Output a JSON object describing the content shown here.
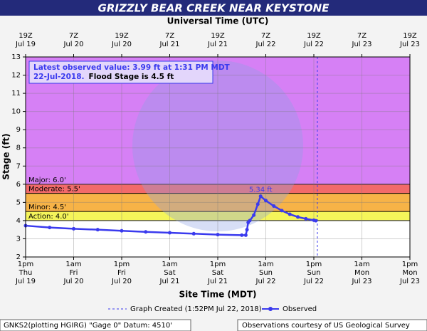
{
  "chart_data": {
    "type": "line",
    "title": "GRIZZLY BEAR CREEK NEAR KEYSTONE",
    "x2_axis_label": "Universal Time (UTC)",
    "x_axis_label": "Site Time (MDT)",
    "y_axis_label": "Stage (ft)",
    "xlim": [
      0,
      96
    ],
    "ylim": [
      2,
      13
    ],
    "yticks": [
      2,
      3,
      4,
      5,
      6,
      7,
      8,
      9,
      10,
      11,
      12,
      13
    ],
    "xticks": [
      {
        "value": 0,
        "label": [
          "1pm",
          "Thu",
          "Jul 19"
        ]
      },
      {
        "value": 12,
        "label": [
          "1am",
          "Fri",
          "Jul 20"
        ]
      },
      {
        "value": 24,
        "label": [
          "1pm",
          "Fri",
          "Jul 20"
        ]
      },
      {
        "value": 36,
        "label": [
          "1am",
          "Sat",
          "Jul 21"
        ]
      },
      {
        "value": 48,
        "label": [
          "1pm",
          "Sat",
          "Jul 21"
        ]
      },
      {
        "value": 60,
        "label": [
          "1am",
          "Sun",
          "Jul 22"
        ]
      },
      {
        "value": 72,
        "label": [
          "1pm",
          "Sun",
          "Jul 22"
        ]
      },
      {
        "value": 84,
        "label": [
          "1am",
          "Mon",
          "Jul 23"
        ]
      },
      {
        "value": 96,
        "label": [
          "1pm",
          "Mon",
          "Jul 23"
        ]
      }
    ],
    "x2ticks": [
      {
        "value": 0,
        "label": [
          "19Z",
          "Jul 19"
        ]
      },
      {
        "value": 12,
        "label": [
          "7Z",
          "Jul 20"
        ]
      },
      {
        "value": 24,
        "label": [
          "19Z",
          "Jul 20"
        ]
      },
      {
        "value": 36,
        "label": [
          "7Z",
          "Jul 21"
        ]
      },
      {
        "value": 48,
        "label": [
          "19Z",
          "Jul 21"
        ]
      },
      {
        "value": 60,
        "label": [
          "7Z",
          "Jul 22"
        ]
      },
      {
        "value": 72,
        "label": [
          "19Z",
          "Jul 22"
        ]
      },
      {
        "value": 84,
        "label": [
          "7Z",
          "Jul 23"
        ]
      },
      {
        "value": 96,
        "label": [
          "19Z",
          "Jul 23"
        ]
      }
    ],
    "grid": true,
    "stages": [
      {
        "label": "Action: 4.0'",
        "value": 4.0,
        "color": "#f5f55a"
      },
      {
        "label": "Minor: 4.5'",
        "value": 4.5,
        "color": "#f7b347"
      },
      {
        "label": "Moderate: 5.5'",
        "value": 5.5,
        "color": "#f26a6a"
      },
      {
        "label": "Major: 6.0'",
        "value": 6.0,
        "color": "#d680f5"
      }
    ],
    "series": [
      {
        "name": "Observed",
        "color": "#3a3aee",
        "x": [
          0,
          6,
          12,
          18,
          24,
          30,
          36,
          42,
          48,
          54,
          55,
          55.3,
          55.6,
          56,
          57,
          58,
          58.7,
          60,
          62,
          64,
          66,
          68,
          70,
          72,
          72.5
        ],
        "values": [
          3.72,
          3.62,
          3.55,
          3.5,
          3.44,
          3.38,
          3.33,
          3.28,
          3.23,
          3.2,
          3.2,
          3.5,
          3.9,
          4.0,
          4.3,
          4.9,
          5.34,
          5.1,
          4.8,
          4.55,
          4.35,
          4.2,
          4.1,
          4.02,
          3.99
        ]
      }
    ],
    "annotations": [
      {
        "text": "5.34 ft",
        "x": 58.7,
        "y": 5.34
      }
    ],
    "graph_created": {
      "label": "Graph Created (1:52PM Jul 22, 2018)",
      "x": 72.88
    },
    "info": {
      "line1": "Latest observed value: 3.99 ft at 1:31 PM MDT",
      "line2": "22-Jul-2018.",
      "flood_stage": "Flood Stage is 4.5 ft"
    },
    "footer_left": "GNKS2(plotting HGIRG) \"Gage 0\" Datum: 4510'",
    "footer_right": "Observations courtesy of US Geological Survey"
  }
}
